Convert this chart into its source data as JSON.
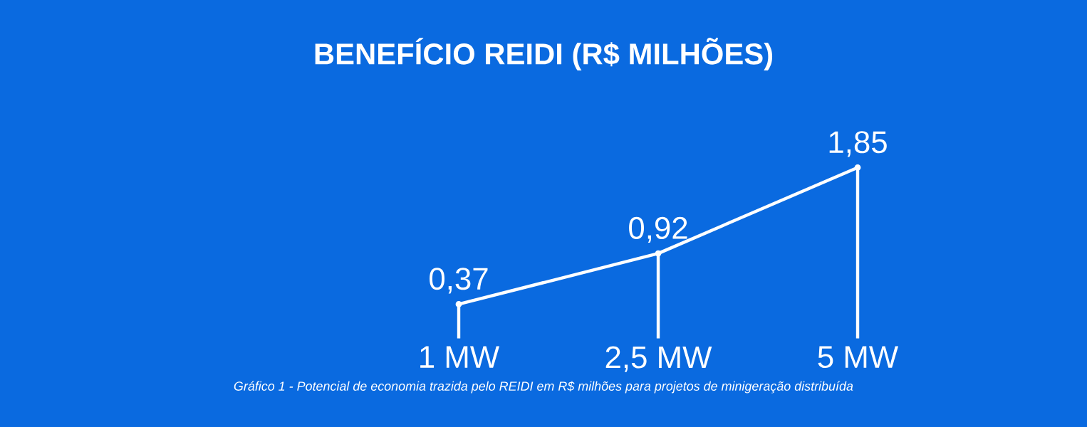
{
  "chart_data": {
    "type": "lollipop",
    "title": "BENEFÍCIO REIDI (R$ MILHÕES)",
    "categories": [
      "1 MW",
      "2,5 MW",
      "5 MW"
    ],
    "values": [
      0.37,
      0.92,
      1.85
    ],
    "value_labels": [
      "0,37",
      "0,92",
      "1,85"
    ],
    "color": "#ffffff",
    "annotations": [
      "Gráfico 1 - Potencial de economia trazida pelo REIDI em R$ milhões para projetos de minigeração distribuída"
    ]
  }
}
